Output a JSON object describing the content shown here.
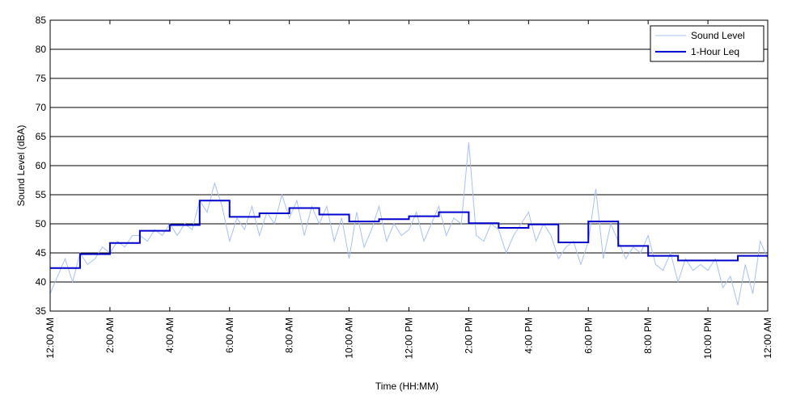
{
  "chart_data": {
    "type": "line",
    "xlabel": "Time (HH:MM)",
    "ylabel": "Sound Level (dBA)",
    "xlim": [
      0,
      24
    ],
    "ylim": [
      35,
      85
    ],
    "yticks": [
      35,
      40,
      45,
      50,
      55,
      60,
      65,
      70,
      75,
      80,
      85
    ],
    "xticks": [
      {
        "value": 0,
        "label": "12:00 AM"
      },
      {
        "value": 2,
        "label": "2:00 AM"
      },
      {
        "value": 4,
        "label": "4:00 AM"
      },
      {
        "value": 6,
        "label": "6:00 AM"
      },
      {
        "value": 8,
        "label": "8:00 AM"
      },
      {
        "value": 10,
        "label": "10:00 AM"
      },
      {
        "value": 12,
        "label": "12:00 PM"
      },
      {
        "value": 14,
        "label": "2:00 PM"
      },
      {
        "value": 16,
        "label": "4:00 PM"
      },
      {
        "value": 18,
        "label": "6:00 PM"
      },
      {
        "value": 20,
        "label": "8:00 PM"
      },
      {
        "value": 22,
        "label": "10:00 PM"
      },
      {
        "value": 24,
        "label": "12:00 AM"
      }
    ],
    "grid": true,
    "legend": "upper right",
    "series": [
      {
        "name": "Sound Level",
        "color": "#a9c1f2",
        "style": "line",
        "x": [
          0,
          0.25,
          0.5,
          0.75,
          1,
          1.25,
          1.5,
          1.75,
          2,
          2.25,
          2.5,
          2.75,
          3,
          3.25,
          3.5,
          3.75,
          4,
          4.25,
          4.5,
          4.75,
          5,
          5.25,
          5.5,
          5.75,
          6,
          6.25,
          6.5,
          6.75,
          7,
          7.25,
          7.5,
          7.75,
          8,
          8.25,
          8.5,
          8.75,
          9,
          9.25,
          9.5,
          9.75,
          10,
          10.25,
          10.5,
          10.75,
          11,
          11.25,
          11.5,
          11.75,
          12,
          12.25,
          12.5,
          12.75,
          13,
          13.25,
          13.5,
          13.75,
          14,
          14.25,
          14.5,
          14.75,
          15,
          15.25,
          15.5,
          15.75,
          16,
          16.25,
          16.5,
          16.75,
          17,
          17.25,
          17.5,
          17.75,
          18,
          18.25,
          18.5,
          18.75,
          19,
          19.25,
          19.5,
          19.75,
          20,
          20.25,
          20.5,
          20.75,
          21,
          21.25,
          21.5,
          21.75,
          22,
          22.25,
          22.5,
          22.75,
          23,
          23.25,
          23.5,
          23.75,
          24
        ],
        "values": [
          38,
          41,
          44,
          40,
          45,
          43,
          44,
          46,
          45,
          47,
          46,
          48,
          48,
          47,
          49,
          48,
          50,
          48,
          50,
          49,
          54,
          52,
          57,
          53,
          47,
          51,
          49,
          53,
          48,
          52,
          50,
          55,
          51,
          54,
          48,
          53,
          50,
          53,
          47,
          51,
          44,
          52,
          46,
          49,
          53,
          47,
          50,
          48,
          49,
          52,
          47,
          50,
          53,
          48,
          51,
          50,
          64,
          48,
          47,
          50,
          49,
          45,
          48,
          50,
          52,
          47,
          50,
          48,
          44,
          46,
          47,
          43,
          47,
          56,
          44,
          50,
          47,
          44,
          46,
          45,
          48,
          43,
          42,
          45,
          40,
          44,
          42,
          43,
          42,
          44,
          39,
          41,
          36,
          43,
          38,
          47,
          44
        ]
      },
      {
        "name": "1-Hour Leq",
        "color": "#0000cc",
        "style": "step",
        "x": [
          0,
          1,
          2,
          3,
          4,
          5,
          6,
          7,
          8,
          9,
          10,
          11,
          12,
          13,
          14,
          15,
          16,
          17,
          18,
          19,
          20,
          21,
          22,
          23
        ],
        "values": [
          42.4,
          44.8,
          46.7,
          48.8,
          49.8,
          54.0,
          51.2,
          51.8,
          52.7,
          51.6,
          50.4,
          50.8,
          51.3,
          52.0,
          50.1,
          49.3,
          49.9,
          46.8,
          50.4,
          46.2,
          44.5,
          43.7,
          43.7,
          44.5
        ]
      }
    ]
  }
}
